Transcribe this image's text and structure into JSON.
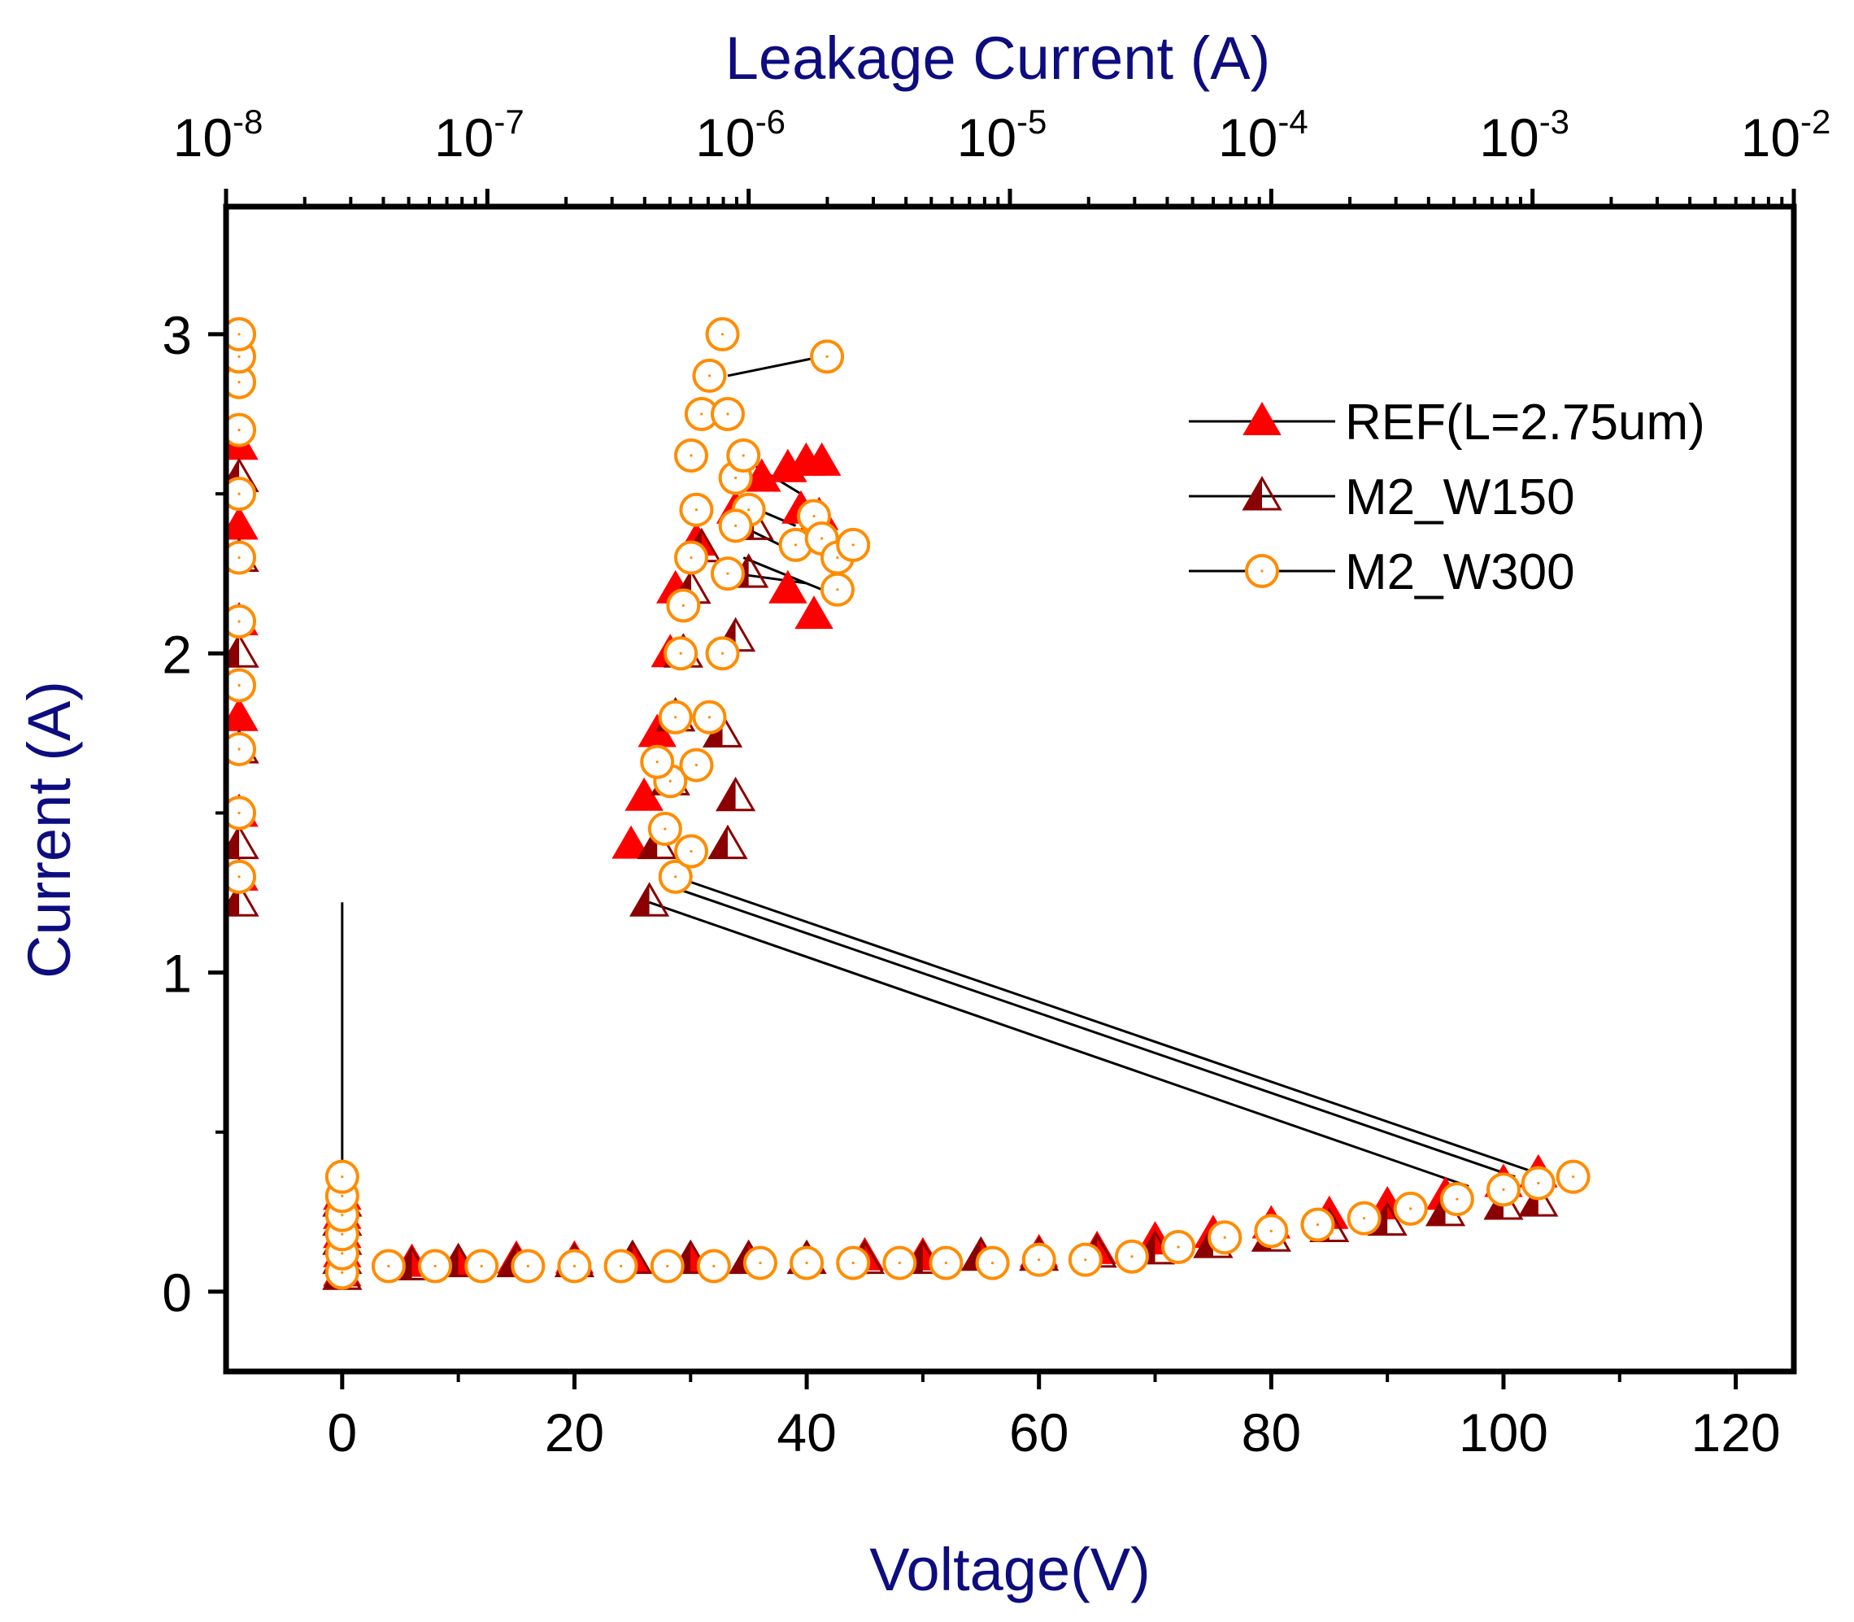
{
  "chart_data": {
    "type": "scatter",
    "title": "",
    "xlabel": "Voltage(V)",
    "ylabel": "Current (A)",
    "x2label": "Leakage Current (A)",
    "xlim": [
      -10,
      125
    ],
    "ylim": [
      -0.25,
      3.4
    ],
    "x2lim_log10": [
      -8,
      -2
    ],
    "x_ticks": [
      0,
      20,
      40,
      60,
      80,
      100,
      120
    ],
    "y_ticks": [
      0,
      1,
      2,
      3
    ],
    "x2_ticks": [
      {
        "base": "10",
        "exp": "-8",
        "log": -8
      },
      {
        "base": "10",
        "exp": "-7",
        "log": -7
      },
      {
        "base": "10",
        "exp": "-6",
        "log": -6
      },
      {
        "base": "10",
        "exp": "-5",
        "log": -5
      },
      {
        "base": "10",
        "exp": "-4",
        "log": -4
      },
      {
        "base": "10",
        "exp": "-3",
        "log": -3
      },
      {
        "base": "10",
        "exp": "-2",
        "log": -2
      }
    ],
    "legend_position": "top-right",
    "colors": {
      "axis": "#000000",
      "title": "#0d0d80",
      "ref": "#ff0000",
      "w150": "#8b0000",
      "w300": "#ff8c00",
      "line": "#000000"
    },
    "series": [
      {
        "name": "REF(L=2.75um)",
        "marker": "triangle-filled",
        "color": "#ff0000",
        "iv_points": [
          [
            0,
            0.06
          ],
          [
            0,
            0.12
          ],
          [
            0,
            0.18
          ],
          [
            0,
            0.24
          ],
          [
            0,
            0.3
          ],
          [
            6,
            0.09
          ],
          [
            10,
            0.09
          ],
          [
            15,
            0.1
          ],
          [
            20,
            0.1
          ],
          [
            25,
            0.1
          ],
          [
            30,
            0.1
          ],
          [
            35,
            0.1
          ],
          [
            40,
            0.1
          ],
          [
            45,
            0.11
          ],
          [
            50,
            0.11
          ],
          [
            55,
            0.11
          ],
          [
            60,
            0.12
          ],
          [
            65,
            0.13
          ],
          [
            70,
            0.16
          ],
          [
            75,
            0.18
          ],
          [
            80,
            0.21
          ],
          [
            85,
            0.24
          ],
          [
            90,
            0.27
          ],
          [
            95,
            0.3
          ],
          [
            100,
            0.34
          ],
          [
            103,
            0.37
          ]
        ],
        "tlp_points_x_log10": [
          [
            -7.95,
            1.3
          ],
          [
            -7.95,
            1.5
          ],
          [
            -7.95,
            1.8
          ],
          [
            -7.95,
            2.1
          ],
          [
            -7.95,
            2.4
          ],
          [
            -7.95,
            2.65
          ],
          [
            -6.45,
            1.4
          ],
          [
            -6.4,
            1.55
          ],
          [
            -6.35,
            1.75
          ],
          [
            -6.3,
            2.0
          ],
          [
            -6.28,
            2.2
          ],
          [
            -6.2,
            2.35
          ],
          [
            -6.05,
            2.45
          ],
          [
            -5.95,
            2.55
          ],
          [
            -5.85,
            2.58
          ],
          [
            -5.78,
            2.6
          ],
          [
            -5.72,
            2.6
          ],
          [
            -5.8,
            2.45
          ],
          [
            -5.73,
            2.43
          ],
          [
            -5.85,
            2.2
          ],
          [
            -5.75,
            2.12
          ]
        ]
      },
      {
        "name": "M2_W150",
        "marker": "triangle-half",
        "color": "#8b0000",
        "iv_points": [
          [
            0,
            0.05
          ],
          [
            0,
            0.1
          ],
          [
            0,
            0.16
          ],
          [
            0,
            0.22
          ],
          [
            0,
            0.28
          ],
          [
            6,
            0.08
          ],
          [
            10,
            0.09
          ],
          [
            15,
            0.09
          ],
          [
            20,
            0.09
          ],
          [
            25,
            0.1
          ],
          [
            30,
            0.1
          ],
          [
            35,
            0.1
          ],
          [
            40,
            0.1
          ],
          [
            45,
            0.1
          ],
          [
            50,
            0.1
          ],
          [
            55,
            0.11
          ],
          [
            60,
            0.11
          ],
          [
            65,
            0.12
          ],
          [
            70,
            0.13
          ],
          [
            75,
            0.15
          ],
          [
            80,
            0.17
          ],
          [
            85,
            0.2
          ],
          [
            90,
            0.22
          ],
          [
            95,
            0.25
          ],
          [
            100,
            0.27
          ],
          [
            103,
            0.28
          ]
        ],
        "tlp_points_x_log10": [
          [
            -7.95,
            1.22
          ],
          [
            -7.95,
            1.4
          ],
          [
            -7.95,
            1.7
          ],
          [
            -7.95,
            2.0
          ],
          [
            -7.95,
            2.3
          ],
          [
            -7.95,
            2.55
          ],
          [
            -6.38,
            1.22
          ],
          [
            -6.35,
            1.4
          ],
          [
            -6.3,
            1.6
          ],
          [
            -6.28,
            1.8
          ],
          [
            -6.25,
            2.0
          ],
          [
            -6.22,
            2.2
          ],
          [
            -6.18,
            2.33
          ],
          [
            -6.08,
            1.4
          ],
          [
            -6.05,
            1.55
          ],
          [
            -6.1,
            1.75
          ],
          [
            -6.05,
            2.05
          ],
          [
            -6.0,
            2.25
          ],
          [
            -5.98,
            2.4
          ]
        ]
      },
      {
        "name": "M2_W300",
        "marker": "circle-open",
        "color": "#ff8c00",
        "iv_points": [
          [
            0,
            0.06
          ],
          [
            0,
            0.12
          ],
          [
            0,
            0.18
          ],
          [
            0,
            0.24
          ],
          [
            0,
            0.3
          ],
          [
            0,
            0.36
          ],
          [
            4,
            0.08
          ],
          [
            8,
            0.08
          ],
          [
            12,
            0.08
          ],
          [
            16,
            0.08
          ],
          [
            20,
            0.08
          ],
          [
            24,
            0.08
          ],
          [
            28,
            0.08
          ],
          [
            32,
            0.08
          ],
          [
            36,
            0.09
          ],
          [
            40,
            0.09
          ],
          [
            44,
            0.09
          ],
          [
            48,
            0.09
          ],
          [
            52,
            0.09
          ],
          [
            56,
            0.09
          ],
          [
            60,
            0.1
          ],
          [
            64,
            0.1
          ],
          [
            68,
            0.11
          ],
          [
            72,
            0.14
          ],
          [
            76,
            0.17
          ],
          [
            80,
            0.19
          ],
          [
            84,
            0.21
          ],
          [
            88,
            0.23
          ],
          [
            92,
            0.26
          ],
          [
            96,
            0.29
          ],
          [
            100,
            0.32
          ],
          [
            103,
            0.34
          ],
          [
            106,
            0.36
          ]
        ],
        "tlp_points_x_log10": [
          [
            -7.95,
            1.3
          ],
          [
            -7.95,
            1.5
          ],
          [
            -7.95,
            1.7
          ],
          [
            -7.95,
            1.9
          ],
          [
            -7.95,
            2.1
          ],
          [
            -7.95,
            2.3
          ],
          [
            -7.95,
            2.5
          ],
          [
            -7.95,
            2.7
          ],
          [
            -7.95,
            2.85
          ],
          [
            -7.95,
            2.93
          ],
          [
            -7.95,
            3.0
          ],
          [
            -6.28,
            1.3
          ],
          [
            -6.32,
            1.45
          ],
          [
            -6.3,
            1.6
          ],
          [
            -6.28,
            1.8
          ],
          [
            -6.26,
            2.0
          ],
          [
            -6.25,
            2.15
          ],
          [
            -6.22,
            2.3
          ],
          [
            -6.2,
            2.45
          ],
          [
            -6.22,
            2.62
          ],
          [
            -6.18,
            2.75
          ],
          [
            -6.15,
            2.87
          ],
          [
            -6.1,
            3.0
          ],
          [
            -6.05,
            2.55
          ],
          [
            -6.0,
            2.45
          ],
          [
            -6.02,
            2.62
          ],
          [
            -6.2,
            1.65
          ],
          [
            -6.15,
            1.8
          ],
          [
            -6.1,
            2.0
          ],
          [
            -6.08,
            2.25
          ],
          [
            -6.05,
            2.4
          ],
          [
            -6.08,
            2.75
          ],
          [
            -6.35,
            1.66
          ],
          [
            -6.22,
            1.38
          ],
          [
            -5.7,
            2.93
          ],
          [
            -5.75,
            2.43
          ],
          [
            -5.82,
            2.34
          ],
          [
            -5.72,
            2.36
          ],
          [
            -5.66,
            2.3
          ],
          [
            -5.6,
            2.34
          ],
          [
            -5.66,
            2.2
          ]
        ]
      }
    ]
  }
}
